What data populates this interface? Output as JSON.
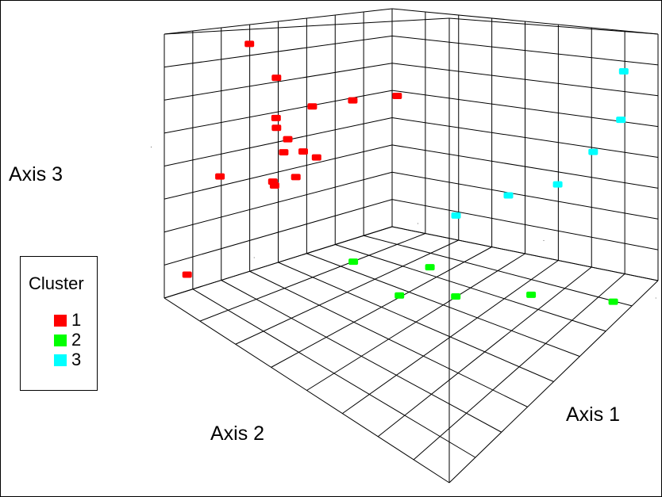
{
  "chart_data": {
    "type": "scatter",
    "projection": "3d",
    "grid": true,
    "legend_position": "left",
    "xlabel": "Axis 1",
    "ylabel": "Axis 2",
    "zlabel": "Axis 3",
    "legend": {
      "title": "Cluster",
      "entries": [
        "1",
        "2",
        "3"
      ]
    },
    "xlim": [
      0,
      1
    ],
    "ylim": [
      0,
      1
    ],
    "zlim": [
      0,
      1
    ],
    "colors": {
      "1": "#ff0000",
      "2": "#00ff00",
      "3": "#00ffff"
    },
    "series": [
      {
        "name": "1",
        "color": "#ff0000",
        "points": [
          {
            "x": 0.1,
            "y": 0.78,
            "z": 0.95
          },
          {
            "x": 0.12,
            "y": 0.7,
            "z": 0.84
          },
          {
            "x": 0.35,
            "y": 0.45,
            "z": 0.78
          },
          {
            "x": 0.3,
            "y": 0.57,
            "z": 0.76
          },
          {
            "x": 0.18,
            "y": 0.62,
            "z": 0.75
          },
          {
            "x": 0.08,
            "y": 0.67,
            "z": 0.72
          },
          {
            "x": 0.12,
            "y": 0.66,
            "z": 0.65
          },
          {
            "x": 0.12,
            "y": 0.7,
            "z": 0.68
          },
          {
            "x": 0.14,
            "y": 0.69,
            "z": 0.6
          },
          {
            "x": 0.19,
            "y": 0.66,
            "z": 0.6
          },
          {
            "x": 0.25,
            "y": 0.66,
            "z": 0.57
          },
          {
            "x": 0.22,
            "y": 0.71,
            "z": 0.5
          },
          {
            "x": 0.18,
            "y": 0.76,
            "z": 0.48
          },
          {
            "x": 0.2,
            "y": 0.77,
            "z": 0.46
          },
          {
            "x": 0.12,
            "y": 0.9,
            "z": 0.47
          },
          {
            "x": 0.05,
            "y": 0.96,
            "z": 0.1
          }
        ]
      },
      {
        "name": "2",
        "color": "#00ff00",
        "points": [
          {
            "x": 0.85,
            "y": 0.05,
            "z": 0.02
          },
          {
            "x": 0.78,
            "y": 0.3,
            "z": 0.02
          },
          {
            "x": 0.62,
            "y": 0.45,
            "z": 0.05
          },
          {
            "x": 0.55,
            "y": 0.6,
            "z": 0.03
          },
          {
            "x": 0.75,
            "y": 0.65,
            "z": 0.03
          },
          {
            "x": 0.65,
            "y": 0.85,
            "z": 0.02
          }
        ]
      },
      {
        "name": "3",
        "color": "#00ffff",
        "points": [
          {
            "x": 0.1,
            "y": 0.05,
            "z": 0.55
          },
          {
            "x": 0.35,
            "y": 0.05,
            "z": 0.55
          },
          {
            "x": 0.9,
            "y": 0.05,
            "z": 0.85
          },
          {
            "x": 0.95,
            "y": 0.1,
            "z": 0.65
          },
          {
            "x": 0.92,
            "y": 0.18,
            "z": 0.52
          },
          {
            "x": 0.65,
            "y": 0.1,
            "z": 0.5
          }
        ]
      }
    ]
  }
}
